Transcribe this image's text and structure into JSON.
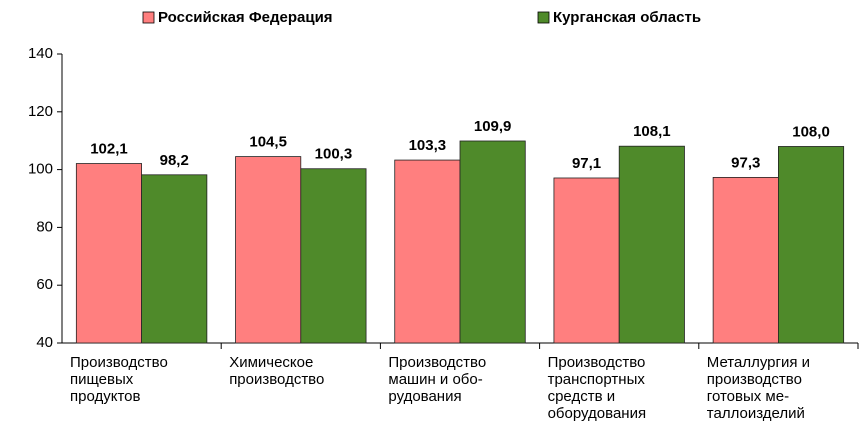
{
  "chart_data": {
    "type": "bar",
    "categories": [
      [
        "Производство",
        "пищевых",
        "продуктов"
      ],
      [
        "Химическое",
        "производство"
      ],
      [
        "Производство",
        "машин и обо-",
        "рудования"
      ],
      [
        "Производство",
        "транспортных",
        "средств и",
        "оборудования"
      ],
      [
        "Металлургия и",
        "производство",
        "готовых ме-",
        "таллоизделий"
      ]
    ],
    "series": [
      {
        "name": "Российская Федерация",
        "color": "#ff7f7f",
        "label_color": "#8b1a1a",
        "values": [
          102.1,
          104.5,
          103.3,
          97.1,
          97.3
        ],
        "value_labels": [
          "102,1",
          "104,5",
          "103,3",
          "97,1",
          "97,3"
        ]
      },
      {
        "name": "Курганская область",
        "color": "#4f8a2a",
        "label_color": "#2f5a14",
        "values": [
          98.2,
          100.3,
          109.9,
          108.1,
          108.0
        ],
        "value_labels": [
          "98,2",
          "100,3",
          "109,9",
          "108,1",
          "108,0"
        ]
      }
    ],
    "ylim": [
      40,
      140
    ],
    "yticks": [
      40,
      60,
      80,
      100,
      120,
      140
    ],
    "grid": false,
    "legend": "top"
  }
}
